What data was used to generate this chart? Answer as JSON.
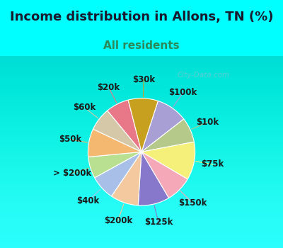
{
  "title": "Income distribution in Allons, TN (%)",
  "subtitle": "All residents",
  "background_color": "#00FFFF",
  "chart_bg_color": "#e8f5e0",
  "slices": [
    {
      "label": "$100k",
      "value": 9.5,
      "color": "#a89fd4"
    },
    {
      "label": "$10k",
      "value": 7.5,
      "color": "#b5c98a"
    },
    {
      "label": "$75k",
      "value": 11.5,
      "color": "#f5f07a"
    },
    {
      "label": "$150k",
      "value": 8.0,
      "color": "#f4a8b8"
    },
    {
      "label": "$125k",
      "value": 9.5,
      "color": "#8878cc"
    },
    {
      "label": "$200k",
      "value": 8.5,
      "color": "#f5c9a0"
    },
    {
      "label": "$40k",
      "value": 7.5,
      "color": "#a8c0e8"
    },
    {
      "label": "> $200k",
      "value": 6.5,
      "color": "#b8e090"
    },
    {
      "label": "$50k",
      "value": 8.5,
      "color": "#f5b870"
    },
    {
      "label": "$60k",
      "value": 7.0,
      "color": "#d4c8a8"
    },
    {
      "label": "$20k",
      "value": 7.0,
      "color": "#e87888"
    },
    {
      "label": "$30k",
      "value": 9.0,
      "color": "#c8a020"
    }
  ],
  "title_fontsize": 13,
  "subtitle_fontsize": 11,
  "label_fontsize": 8.5,
  "title_color": "#1a1a2e",
  "subtitle_color": "#2a8a5a",
  "watermark_text": "City-Data.com",
  "watermark_color": "#aabbcc",
  "watermark_alpha": 0.55
}
